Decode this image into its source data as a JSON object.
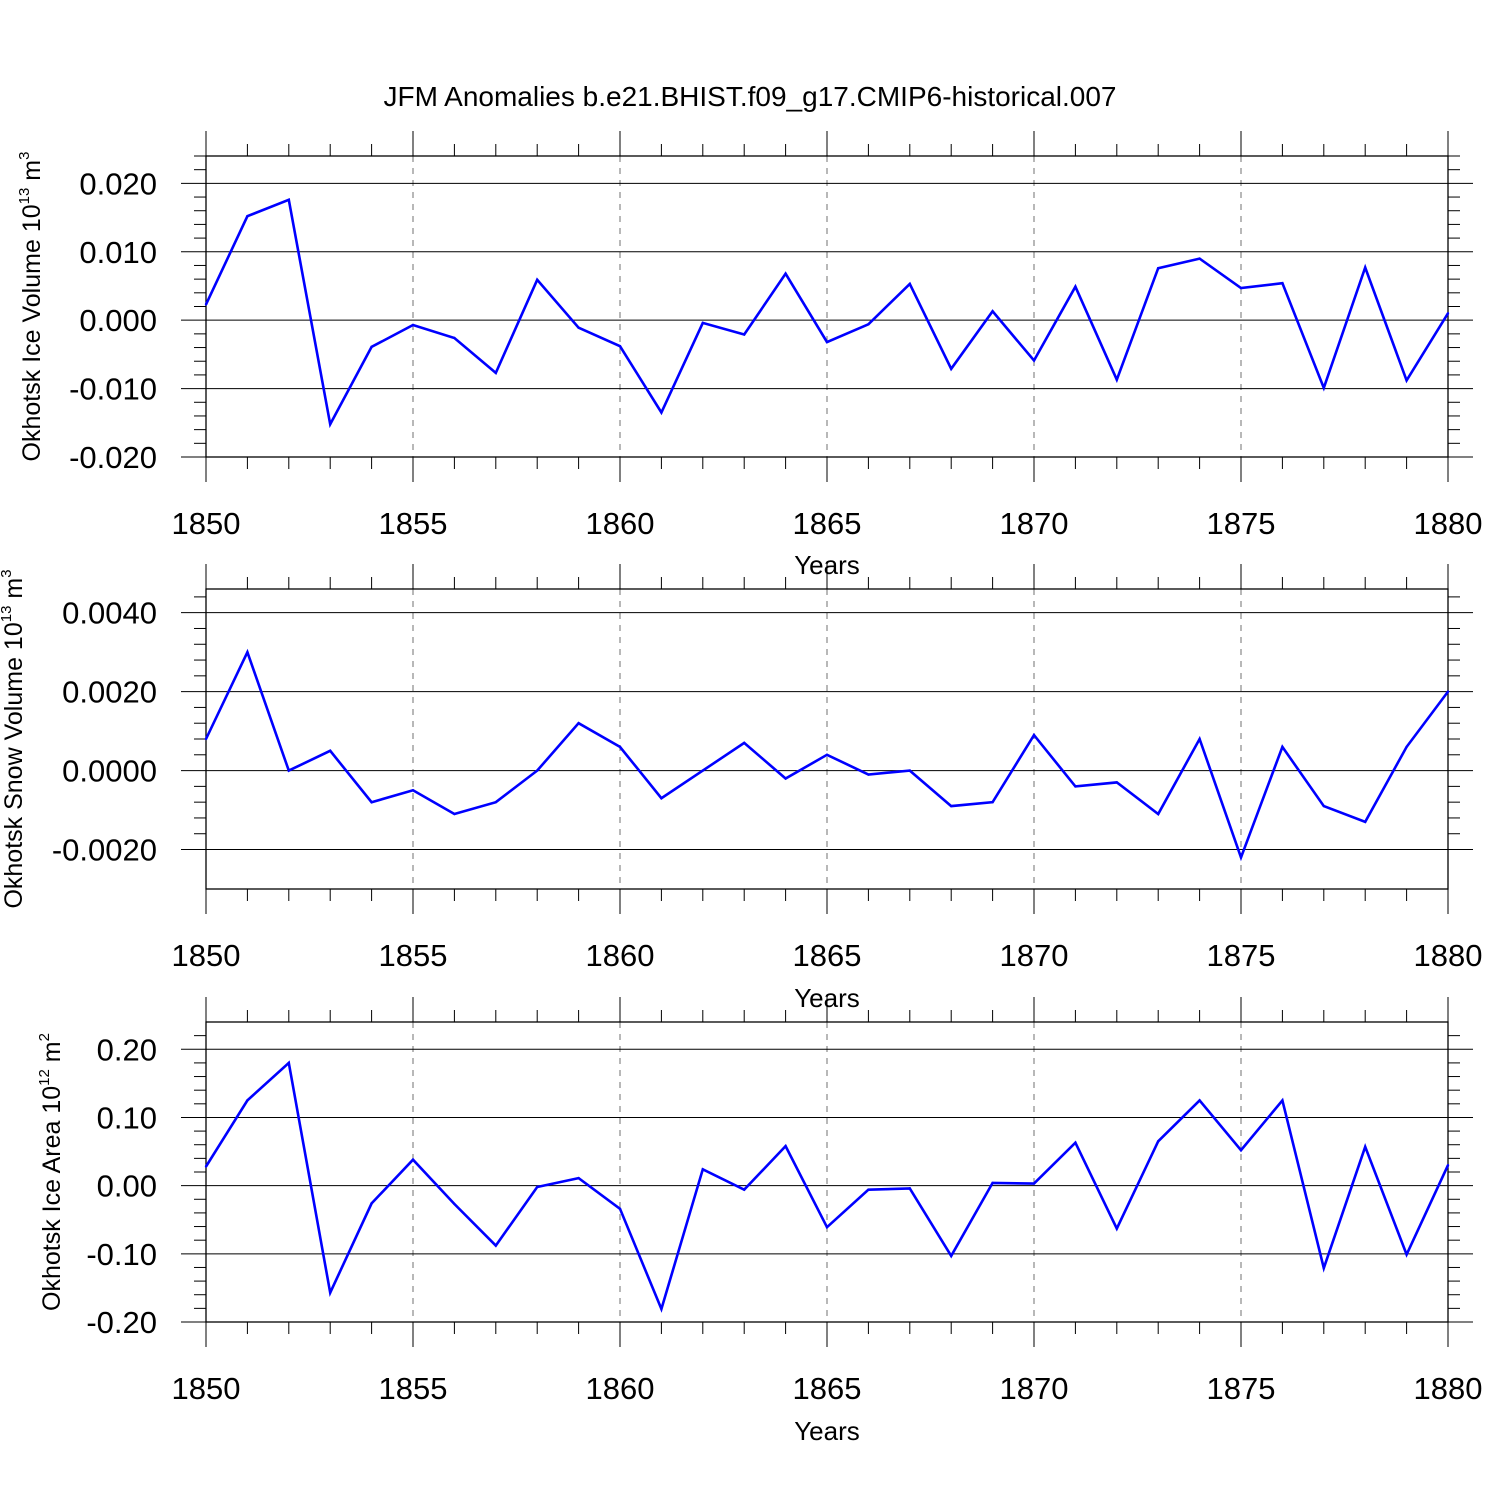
{
  "title": "JFM Anomalies b.e21.BHIST.f09_g17.CMIP6-historical.007",
  "style": {
    "line_color": "#0000ff",
    "axis_color": "#000000",
    "grid_color": "#888888"
  },
  "chart_data": [
    {
      "type": "line",
      "ylabel": {
        "main": "Okhotsk Ice Volume 10",
        "exp": "13",
        "unit": " m",
        "unit_exp": "3"
      },
      "xlabel": "Years",
      "xlim": [
        1850,
        1880
      ],
      "ylim": [
        -0.02,
        0.024
      ],
      "yticks": [
        -0.02,
        -0.01,
        0.0,
        0.01,
        0.02
      ],
      "ytick_labels": [
        "-0.020",
        "-0.010",
        "0.000",
        "0.010",
        "0.020"
      ],
      "xticks": [
        1850,
        1855,
        1860,
        1865,
        1870,
        1875,
        1880
      ],
      "xtick_labels": [
        "1850",
        "1855",
        "1860",
        "1865",
        "1870",
        "1875",
        "1880"
      ],
      "grid_x": [
        1855,
        1860,
        1865,
        1870,
        1875
      ],
      "x": [
        1850,
        1851,
        1852,
        1853,
        1854,
        1855,
        1856,
        1857,
        1858,
        1859,
        1860,
        1861,
        1862,
        1863,
        1864,
        1865,
        1866,
        1867,
        1868,
        1869,
        1870,
        1871,
        1872,
        1873,
        1874,
        1875,
        1876,
        1877,
        1878,
        1879,
        1880
      ],
      "y": [
        0.0023,
        0.0152,
        0.0176,
        -0.0152,
        -0.0039,
        -0.0007,
        -0.0026,
        -0.0077,
        0.0059,
        -0.0011,
        -0.0038,
        -0.0135,
        -0.0004,
        -0.0021,
        0.0068,
        -0.0032,
        -0.0006,
        0.0053,
        -0.0071,
        0.0013,
        -0.0059,
        0.0049,
        -0.0087,
        0.0076,
        0.009,
        0.0047,
        0.0054,
        -0.0099,
        0.0077,
        -0.0088,
        0.001
      ]
    },
    {
      "type": "line",
      "ylabel": {
        "main": "Okhotsk Snow Volume 10",
        "exp": "13",
        "unit": " m",
        "unit_exp": "3"
      },
      "xlabel": "Years",
      "xlim": [
        1850,
        1880
      ],
      "ylim": [
        -0.003,
        0.0046
      ],
      "yticks": [
        -0.002,
        0.0,
        0.002,
        0.004
      ],
      "ytick_labels": [
        "-0.0020",
        "0.0000",
        "0.0020",
        "0.0040"
      ],
      "xticks": [
        1850,
        1855,
        1860,
        1865,
        1870,
        1875,
        1880
      ],
      "xtick_labels": [
        "1850",
        "1855",
        "1860",
        "1865",
        "1870",
        "1875",
        "1880"
      ],
      "grid_x": [
        1855,
        1860,
        1865,
        1870,
        1875
      ],
      "x": [
        1850,
        1851,
        1852,
        1853,
        1854,
        1855,
        1856,
        1857,
        1858,
        1859,
        1860,
        1861,
        1862,
        1863,
        1864,
        1865,
        1866,
        1867,
        1868,
        1869,
        1870,
        1871,
        1872,
        1873,
        1874,
        1875,
        1876,
        1877,
        1878,
        1879,
        1880
      ],
      "y": [
        0.0008,
        0.003,
        0.0,
        0.0005,
        -0.0008,
        -0.0005,
        -0.0011,
        -0.0008,
        0.0,
        0.0012,
        0.0006,
        -0.0007,
        0.0,
        0.0007,
        -0.0002,
        0.0004,
        -0.0001,
        0.0,
        -0.0009,
        -0.0008,
        0.0009,
        -0.0004,
        -0.0003,
        -0.0011,
        0.0008,
        -0.0022,
        0.0006,
        -0.0009,
        -0.0013,
        0.0006,
        0.002
      ]
    },
    {
      "type": "line",
      "ylabel": {
        "main": "Okhotsk Ice Area 10",
        "exp": "12",
        "unit": " m",
        "unit_exp": "2"
      },
      "xlabel": "Years",
      "xlim": [
        1850,
        1880
      ],
      "ylim": [
        -0.2,
        0.24
      ],
      "yticks": [
        -0.2,
        -0.1,
        0.0,
        0.1,
        0.2
      ],
      "ytick_labels": [
        "-0.20",
        "-0.10",
        "0.00",
        "0.10",
        "0.20"
      ],
      "xticks": [
        1850,
        1855,
        1860,
        1865,
        1870,
        1875,
        1880
      ],
      "xtick_labels": [
        "1850",
        "1855",
        "1860",
        "1865",
        "1870",
        "1875",
        "1880"
      ],
      "grid_x": [
        1855,
        1860,
        1865,
        1870,
        1875
      ],
      "x": [
        1850,
        1851,
        1852,
        1853,
        1854,
        1855,
        1856,
        1857,
        1858,
        1859,
        1860,
        1861,
        1862,
        1863,
        1864,
        1865,
        1866,
        1867,
        1868,
        1869,
        1870,
        1871,
        1872,
        1873,
        1874,
        1875,
        1876,
        1877,
        1878,
        1879,
        1880
      ],
      "y": [
        0.028,
        0.125,
        0.18,
        -0.157,
        -0.026,
        0.038,
        -0.027,
        -0.088,
        -0.002,
        0.011,
        -0.034,
        -0.181,
        0.024,
        -0.006,
        0.058,
        -0.061,
        -0.006,
        -0.004,
        -0.103,
        0.004,
        0.003,
        0.063,
        -0.063,
        0.065,
        0.125,
        0.052,
        0.125,
        -0.121,
        0.057,
        -0.101,
        0.03
      ]
    }
  ]
}
